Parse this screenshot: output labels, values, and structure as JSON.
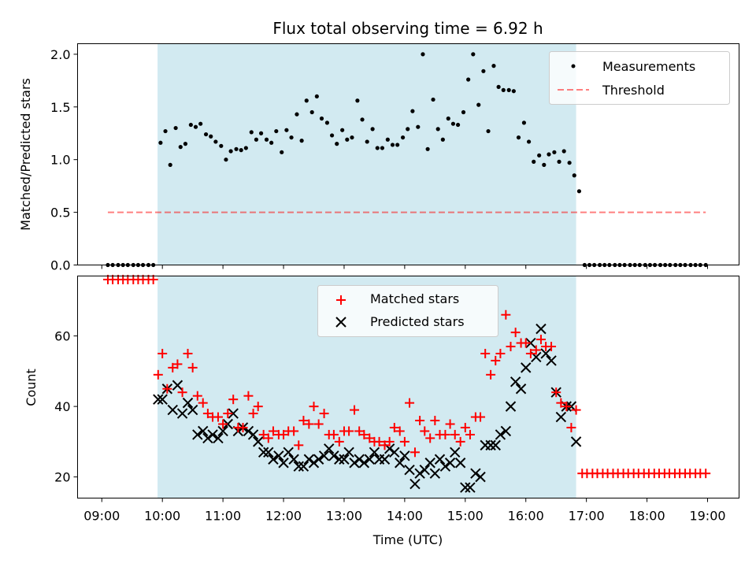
{
  "title": "Flux total observing time = 6.92 h",
  "colors": {
    "band": "#add8e6",
    "measurements": "#000000",
    "threshold": "#ff0000",
    "matched": "#ff0000",
    "predicted": "#000000"
  },
  "chart_data": [
    {
      "type": "scatter",
      "ylabel": "Matched/Predicted stars",
      "xlabel": "",
      "xlim": [
        8.6,
        19.52
      ],
      "ylim": [
        0,
        2.1
      ],
      "yticks": [
        0.0,
        0.5,
        1.0,
        1.5,
        2.0
      ],
      "yticklabels": [
        "0.0",
        "0.5",
        "1.0",
        "1.5",
        "2.0"
      ],
      "legend_position": "top-right",
      "band": [
        9.92,
        16.83
      ],
      "series": [
        {
          "name": "Measurements",
          "marker": "dot",
          "x": [
            9.1,
            9.18,
            9.27,
            9.35,
            9.43,
            9.52,
            9.6,
            9.68,
            9.77,
            9.85,
            9.97,
            10.05,
            10.13,
            10.22,
            10.3,
            10.38,
            10.47,
            10.55,
            10.63,
            10.72,
            10.8,
            10.88,
            10.97,
            11.05,
            11.13,
            11.22,
            11.3,
            11.38,
            11.47,
            11.55,
            11.63,
            11.72,
            11.8,
            11.88,
            11.97,
            12.05,
            12.13,
            12.22,
            12.3,
            12.38,
            12.47,
            12.55,
            12.63,
            12.72,
            12.8,
            12.88,
            12.97,
            13.05,
            13.13,
            13.22,
            13.3,
            13.38,
            13.47,
            13.55,
            13.63,
            13.72,
            13.8,
            13.88,
            13.97,
            14.05,
            14.13,
            14.22,
            14.3,
            14.38,
            14.47,
            14.55,
            14.63,
            14.72,
            14.8,
            14.88,
            14.97,
            15.05,
            15.13,
            15.22,
            15.3,
            15.38,
            15.47,
            15.55,
            15.63,
            15.72,
            15.8,
            15.88,
            15.97,
            16.05,
            16.13,
            16.22,
            16.3,
            16.38,
            16.47,
            16.55,
            16.63,
            16.72,
            16.8,
            16.88,
            16.97,
            17.05,
            17.13,
            17.22,
            17.3,
            17.38,
            17.47,
            17.55,
            17.63,
            17.72,
            17.8,
            17.88,
            17.97,
            18.05,
            18.13,
            18.22,
            18.3,
            18.38,
            18.47,
            18.55,
            18.63,
            18.72,
            18.8,
            18.88,
            18.97
          ],
          "y": [
            0,
            0,
            0,
            0,
            0,
            0,
            0,
            0,
            0,
            0,
            1.16,
            1.27,
            0.95,
            1.3,
            1.12,
            1.15,
            1.33,
            1.31,
            1.34,
            1.24,
            1.22,
            1.17,
            1.13,
            1.0,
            1.08,
            1.1,
            1.09,
            1.11,
            1.26,
            1.19,
            1.25,
            1.19,
            1.16,
            1.27,
            1.07,
            1.28,
            1.21,
            1.43,
            1.18,
            1.56,
            1.45,
            1.6,
            1.39,
            1.35,
            1.23,
            1.15,
            1.28,
            1.19,
            1.21,
            1.56,
            1.38,
            1.17,
            1.29,
            1.11,
            1.11,
            1.19,
            1.14,
            1.14,
            1.21,
            1.29,
            1.46,
            1.31,
            2.0,
            1.1,
            1.57,
            1.29,
            1.19,
            1.39,
            1.34,
            1.33,
            1.45,
            1.76,
            2.0,
            1.52,
            1.84,
            1.27,
            1.89,
            1.69,
            1.66,
            1.66,
            1.65,
            1.21,
            1.35,
            1.17,
            0.98,
            1.04,
            0.95,
            1.05,
            1.07,
            0.98,
            1.08,
            0.97,
            0.85,
            0.7,
            0,
            0,
            0,
            0,
            0,
            0,
            0,
            0,
            0,
            0,
            0,
            0,
            0,
            0,
            0,
            0,
            0,
            0,
            0,
            0,
            0,
            0,
            0,
            0,
            0
          ]
        },
        {
          "name": "Threshold",
          "line": "dashed",
          "x": [
            9.1,
            18.97
          ],
          "y": [
            0.5,
            0.5
          ]
        }
      ]
    },
    {
      "type": "scatter",
      "xlabel": "Time (UTC)",
      "ylabel": "Count",
      "xlim": [
        8.6,
        19.52
      ],
      "ylim": [
        14,
        77
      ],
      "xticks": [
        9,
        10,
        11,
        12,
        13,
        14,
        15,
        16,
        17,
        18,
        19
      ],
      "xticklabels": [
        "09:00",
        "10:00",
        "11:00",
        "12:00",
        "13:00",
        "14:00",
        "15:00",
        "16:00",
        "17:00",
        "18:00",
        "19:00"
      ],
      "yticks": [
        20,
        40,
        60
      ],
      "yticklabels": [
        "20",
        "40",
        "60"
      ],
      "legend_position": "top-center",
      "band": [
        9.92,
        16.83
      ],
      "series": [
        {
          "name": "Matched stars",
          "marker": "plus",
          "x": [
            9.1,
            9.18,
            9.27,
            9.35,
            9.43,
            9.52,
            9.6,
            9.68,
            9.77,
            9.85,
            9.93,
            10.0,
            10.08,
            10.17,
            10.25,
            10.33,
            10.42,
            10.5,
            10.58,
            10.67,
            10.75,
            10.83,
            10.92,
            11.0,
            11.08,
            11.17,
            11.25,
            11.33,
            11.42,
            11.5,
            11.58,
            11.67,
            11.75,
            11.83,
            11.92,
            12.0,
            12.08,
            12.17,
            12.25,
            12.33,
            12.42,
            12.5,
            12.58,
            12.67,
            12.75,
            12.83,
            12.92,
            13.0,
            13.08,
            13.17,
            13.25,
            13.33,
            13.42,
            13.5,
            13.58,
            13.67,
            13.75,
            13.83,
            13.92,
            14.0,
            14.08,
            14.17,
            14.25,
            14.33,
            14.42,
            14.5,
            14.58,
            14.67,
            14.75,
            14.83,
            14.92,
            15.0,
            15.08,
            15.17,
            15.25,
            15.33,
            15.42,
            15.5,
            15.58,
            15.67,
            15.75,
            15.83,
            15.92,
            16.0,
            16.08,
            16.17,
            16.25,
            16.33,
            16.42,
            16.5,
            16.58,
            16.67,
            16.75,
            16.83,
            16.93,
            17.01,
            17.1,
            17.18,
            17.27,
            17.35,
            17.44,
            17.52,
            17.61,
            17.69,
            17.78,
            17.86,
            17.95,
            18.03,
            18.12,
            18.2,
            18.29,
            18.37,
            18.46,
            18.54,
            18.63,
            18.71,
            18.8,
            18.88,
            18.97
          ],
          "y": [
            76,
            76,
            76,
            76,
            76,
            76,
            76,
            76,
            76,
            76,
            49,
            55,
            45,
            51,
            52,
            44,
            55,
            51,
            43,
            41,
            38,
            37,
            37,
            35,
            38,
            42,
            34,
            34,
            43,
            38,
            40,
            32,
            31,
            33,
            32,
            32,
            33,
            33,
            29,
            36,
            35,
            40,
            35,
            38,
            32,
            32,
            30,
            33,
            33,
            39,
            33,
            32,
            31,
            30,
            30,
            29,
            30,
            34,
            33,
            30,
            41,
            27,
            36,
            33,
            31,
            36,
            32,
            32,
            35,
            32,
            30,
            34,
            32,
            37,
            37,
            55,
            49,
            53,
            55,
            66,
            57,
            61,
            58,
            58,
            55,
            56,
            59,
            57,
            57,
            44,
            41,
            40,
            34,
            39,
            21,
            21,
            21,
            21,
            21,
            21,
            21,
            21,
            21,
            21,
            21,
            21,
            21,
            21,
            21,
            21,
            21,
            21,
            21,
            21,
            21,
            21,
            21,
            21,
            21
          ]
        },
        {
          "name": "Predicted stars",
          "marker": "x",
          "x": [
            9.93,
            10.0,
            10.08,
            10.17,
            10.25,
            10.33,
            10.42,
            10.5,
            10.58,
            10.67,
            10.75,
            10.83,
            10.92,
            11.0,
            11.08,
            11.17,
            11.25,
            11.33,
            11.42,
            11.5,
            11.58,
            11.67,
            11.75,
            11.83,
            11.92,
            12.0,
            12.08,
            12.17,
            12.25,
            12.33,
            12.42,
            12.5,
            12.58,
            12.67,
            12.75,
            12.83,
            12.92,
            13.0,
            13.08,
            13.17,
            13.25,
            13.33,
            13.42,
            13.5,
            13.58,
            13.67,
            13.75,
            13.83,
            13.92,
            14.0,
            14.08,
            14.17,
            14.25,
            14.33,
            14.42,
            14.5,
            14.58,
            14.67,
            14.75,
            14.83,
            14.92,
            15.0,
            15.08,
            15.17,
            15.25,
            15.33,
            15.42,
            15.5,
            15.58,
            15.67,
            15.75,
            15.83,
            15.92,
            16.0,
            16.08,
            16.17,
            16.25,
            16.33,
            16.42,
            16.5,
            16.58,
            16.67,
            16.75,
            16.83
          ],
          "y": [
            42,
            42,
            45,
            39,
            46,
            38,
            41,
            39,
            32,
            33,
            31,
            32,
            31,
            33,
            35,
            38,
            33,
            34,
            33,
            32,
            30,
            27,
            27,
            25,
            26,
            24,
            27,
            25,
            23,
            23,
            25,
            24,
            25,
            26,
            28,
            26,
            25,
            25,
            27,
            24,
            25,
            24,
            25,
            27,
            25,
            25,
            28,
            27,
            24,
            26,
            22,
            18,
            21,
            22,
            24,
            21,
            25,
            23,
            24,
            27,
            24,
            17,
            17,
            21,
            20,
            29,
            29,
            29,
            32,
            33,
            40,
            47,
            45,
            51,
            58,
            54,
            62,
            55,
            53,
            44,
            37,
            40,
            40,
            30
          ]
        }
      ]
    }
  ]
}
